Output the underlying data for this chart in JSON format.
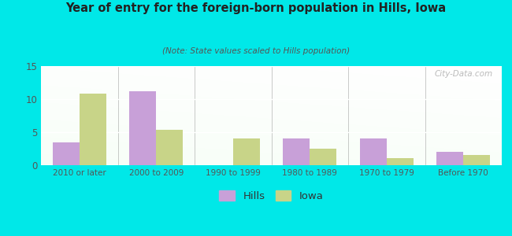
{
  "title": "Year of entry for the foreign-born population in Hills, Iowa",
  "subtitle": "(Note: State values scaled to Hills population)",
  "categories": [
    "2010 or later",
    "2000 to 2009",
    "1990 to 1999",
    "1980 to 1989",
    "1970 to 1979",
    "Before 1970"
  ],
  "hills_values": [
    3.5,
    11.2,
    0,
    4.0,
    4.0,
    2.0
  ],
  "iowa_values": [
    10.8,
    5.4,
    4.0,
    2.5,
    1.1,
    1.5
  ],
  "hills_color": "#c8a0d8",
  "iowa_color": "#c8d488",
  "ylim": [
    0,
    15
  ],
  "yticks": [
    0,
    5,
    10,
    15
  ],
  "bg_outer": "#00e8e8",
  "legend_hills": "Hills",
  "legend_iowa": "Iowa",
  "bar_width": 0.35,
  "watermark": "City-Data.com"
}
